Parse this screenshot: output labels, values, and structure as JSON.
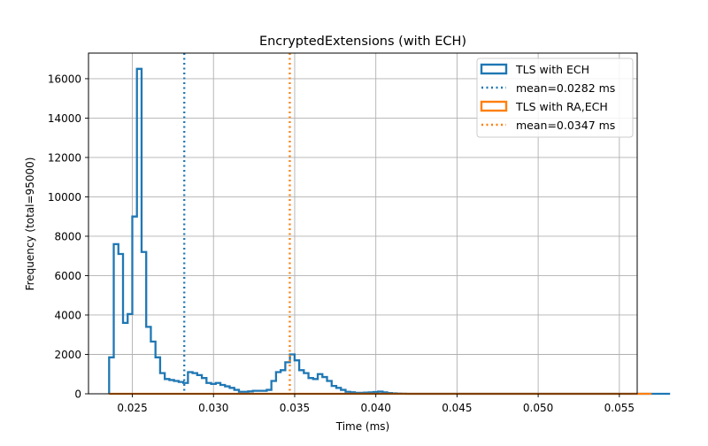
{
  "chart_data": {
    "type": "histogram",
    "title": "EncryptedExtensions (with ECH)",
    "xlabel": "Time (ms)",
    "ylabel": "Frequency (total=95000)",
    "xlim": [
      0.0223,
      0.0561
    ],
    "ylim": [
      0,
      17300
    ],
    "xticks": [
      "0.025",
      "0.030",
      "0.035",
      "0.040",
      "0.045",
      "0.050",
      "0.055"
    ],
    "yticks": [
      "0",
      "2000",
      "4000",
      "6000",
      "8000",
      "10000",
      "12000",
      "14000",
      "16000"
    ],
    "grid": true,
    "legend_position": "top-right",
    "colors": {
      "ech": "#1f77b4",
      "ra_ech": "#ff7f0e"
    },
    "series": [
      {
        "name": "TLS with ECH",
        "mean_label": "mean=0.0282 ms",
        "mean": 0.0282,
        "bin_start": 0.02357,
        "bin_width": 0.0002856,
        "counts": [
          1850,
          7600,
          7100,
          3600,
          4050,
          9000,
          16500,
          7200,
          3400,
          2650,
          1850,
          1050,
          750,
          700,
          650,
          600,
          550,
          1100,
          1050,
          950,
          800,
          550,
          500,
          550,
          450,
          380,
          300,
          200,
          100,
          100,
          120,
          150,
          150,
          150,
          200,
          650,
          1100,
          1200,
          1600,
          2000,
          1700,
          1200,
          1050,
          800,
          750,
          1000,
          850,
          650,
          400,
          300,
          200,
          100,
          80,
          50,
          50,
          60,
          70,
          90,
          110,
          70,
          40,
          20,
          10,
          5,
          0,
          0,
          0,
          0,
          0,
          0,
          0,
          0,
          0,
          0,
          0,
          0,
          0,
          0,
          0,
          0,
          0,
          0,
          0,
          0,
          0,
          0,
          0,
          0,
          0,
          0,
          0,
          0,
          0,
          0,
          0,
          0,
          0,
          0,
          0,
          0,
          0,
          0,
          0,
          0,
          0,
          0,
          0,
          0,
          0,
          0,
          0,
          0,
          0,
          0,
          0,
          0,
          0,
          0,
          0,
          0,
          0
        ]
      },
      {
        "name": "TLS with RA,ECH",
        "mean_label": "mean=0.0347 ms",
        "mean": 0.0347,
        "bin_start": 0.02357,
        "bin_width": 0.0002856,
        "counts": [
          0,
          0,
          0,
          0,
          0,
          0,
          0,
          0,
          0,
          0,
          0,
          0,
          0,
          0,
          0,
          0,
          0,
          0,
          0,
          0,
          0,
          0,
          0,
          0,
          0,
          0,
          0,
          0,
          0,
          0,
          0,
          0,
          0,
          0,
          0,
          0,
          0,
          0,
          0,
          0,
          0,
          0,
          0,
          0,
          0,
          0,
          0,
          0,
          0,
          0,
          0,
          0,
          0,
          0,
          0,
          0,
          0,
          0,
          0,
          0,
          0,
          0,
          0,
          0,
          0,
          0,
          0,
          0,
          0,
          0,
          0,
          0,
          0,
          0,
          0,
          0,
          0,
          0,
          0,
          0,
          0,
          0,
          0,
          0,
          0,
          0,
          0,
          0,
          0,
          0,
          0,
          0,
          0,
          0,
          0,
          0,
          0,
          0,
          0,
          0,
          0,
          0,
          0,
          0,
          0,
          0,
          0,
          0,
          0,
          0,
          0,
          0,
          0,
          0,
          0,
          0,
          0
        ]
      }
    ]
  }
}
